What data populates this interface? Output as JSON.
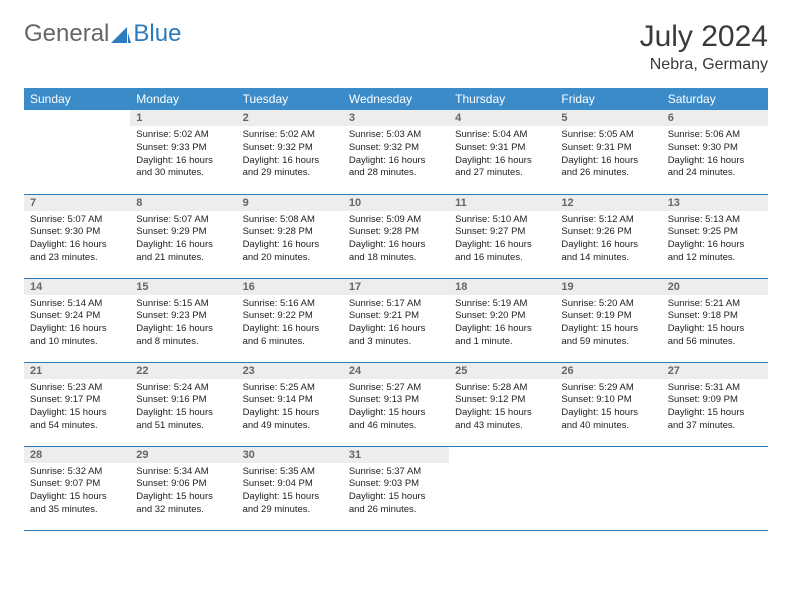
{
  "brand": {
    "part1": "General",
    "part2": "Blue"
  },
  "title": "July 2024",
  "location": "Nebra, Germany",
  "colors": {
    "header_bg": "#3b8bc9",
    "header_text": "#ffffff",
    "daynum_bg": "#ededed",
    "daynum_text": "#666666",
    "border": "#2b7bbd",
    "logo_accent": "#2b7bbd"
  },
  "weekdays": [
    "Sunday",
    "Monday",
    "Tuesday",
    "Wednesday",
    "Thursday",
    "Friday",
    "Saturday"
  ],
  "start_offset": 1,
  "days": [
    {
      "n": "1",
      "sunrise": "5:02 AM",
      "sunset": "9:33 PM",
      "daylight": "16 hours and 30 minutes."
    },
    {
      "n": "2",
      "sunrise": "5:02 AM",
      "sunset": "9:32 PM",
      "daylight": "16 hours and 29 minutes."
    },
    {
      "n": "3",
      "sunrise": "5:03 AM",
      "sunset": "9:32 PM",
      "daylight": "16 hours and 28 minutes."
    },
    {
      "n": "4",
      "sunrise": "5:04 AM",
      "sunset": "9:31 PM",
      "daylight": "16 hours and 27 minutes."
    },
    {
      "n": "5",
      "sunrise": "5:05 AM",
      "sunset": "9:31 PM",
      "daylight": "16 hours and 26 minutes."
    },
    {
      "n": "6",
      "sunrise": "5:06 AM",
      "sunset": "9:30 PM",
      "daylight": "16 hours and 24 minutes."
    },
    {
      "n": "7",
      "sunrise": "5:07 AM",
      "sunset": "9:30 PM",
      "daylight": "16 hours and 23 minutes."
    },
    {
      "n": "8",
      "sunrise": "5:07 AM",
      "sunset": "9:29 PM",
      "daylight": "16 hours and 21 minutes."
    },
    {
      "n": "9",
      "sunrise": "5:08 AM",
      "sunset": "9:28 PM",
      "daylight": "16 hours and 20 minutes."
    },
    {
      "n": "10",
      "sunrise": "5:09 AM",
      "sunset": "9:28 PM",
      "daylight": "16 hours and 18 minutes."
    },
    {
      "n": "11",
      "sunrise": "5:10 AM",
      "sunset": "9:27 PM",
      "daylight": "16 hours and 16 minutes."
    },
    {
      "n": "12",
      "sunrise": "5:12 AM",
      "sunset": "9:26 PM",
      "daylight": "16 hours and 14 minutes."
    },
    {
      "n": "13",
      "sunrise": "5:13 AM",
      "sunset": "9:25 PM",
      "daylight": "16 hours and 12 minutes."
    },
    {
      "n": "14",
      "sunrise": "5:14 AM",
      "sunset": "9:24 PM",
      "daylight": "16 hours and 10 minutes."
    },
    {
      "n": "15",
      "sunrise": "5:15 AM",
      "sunset": "9:23 PM",
      "daylight": "16 hours and 8 minutes."
    },
    {
      "n": "16",
      "sunrise": "5:16 AM",
      "sunset": "9:22 PM",
      "daylight": "16 hours and 6 minutes."
    },
    {
      "n": "17",
      "sunrise": "5:17 AM",
      "sunset": "9:21 PM",
      "daylight": "16 hours and 3 minutes."
    },
    {
      "n": "18",
      "sunrise": "5:19 AM",
      "sunset": "9:20 PM",
      "daylight": "16 hours and 1 minute."
    },
    {
      "n": "19",
      "sunrise": "5:20 AM",
      "sunset": "9:19 PM",
      "daylight": "15 hours and 59 minutes."
    },
    {
      "n": "20",
      "sunrise": "5:21 AM",
      "sunset": "9:18 PM",
      "daylight": "15 hours and 56 minutes."
    },
    {
      "n": "21",
      "sunrise": "5:23 AM",
      "sunset": "9:17 PM",
      "daylight": "15 hours and 54 minutes."
    },
    {
      "n": "22",
      "sunrise": "5:24 AM",
      "sunset": "9:16 PM",
      "daylight": "15 hours and 51 minutes."
    },
    {
      "n": "23",
      "sunrise": "5:25 AM",
      "sunset": "9:14 PM",
      "daylight": "15 hours and 49 minutes."
    },
    {
      "n": "24",
      "sunrise": "5:27 AM",
      "sunset": "9:13 PM",
      "daylight": "15 hours and 46 minutes."
    },
    {
      "n": "25",
      "sunrise": "5:28 AM",
      "sunset": "9:12 PM",
      "daylight": "15 hours and 43 minutes."
    },
    {
      "n": "26",
      "sunrise": "5:29 AM",
      "sunset": "9:10 PM",
      "daylight": "15 hours and 40 minutes."
    },
    {
      "n": "27",
      "sunrise": "5:31 AM",
      "sunset": "9:09 PM",
      "daylight": "15 hours and 37 minutes."
    },
    {
      "n": "28",
      "sunrise": "5:32 AM",
      "sunset": "9:07 PM",
      "daylight": "15 hours and 35 minutes."
    },
    {
      "n": "29",
      "sunrise": "5:34 AM",
      "sunset": "9:06 PM",
      "daylight": "15 hours and 32 minutes."
    },
    {
      "n": "30",
      "sunrise": "5:35 AM",
      "sunset": "9:04 PM",
      "daylight": "15 hours and 29 minutes."
    },
    {
      "n": "31",
      "sunrise": "5:37 AM",
      "sunset": "9:03 PM",
      "daylight": "15 hours and 26 minutes."
    }
  ],
  "labels": {
    "sunrise": "Sunrise:",
    "sunset": "Sunset:",
    "daylight": "Daylight:"
  }
}
